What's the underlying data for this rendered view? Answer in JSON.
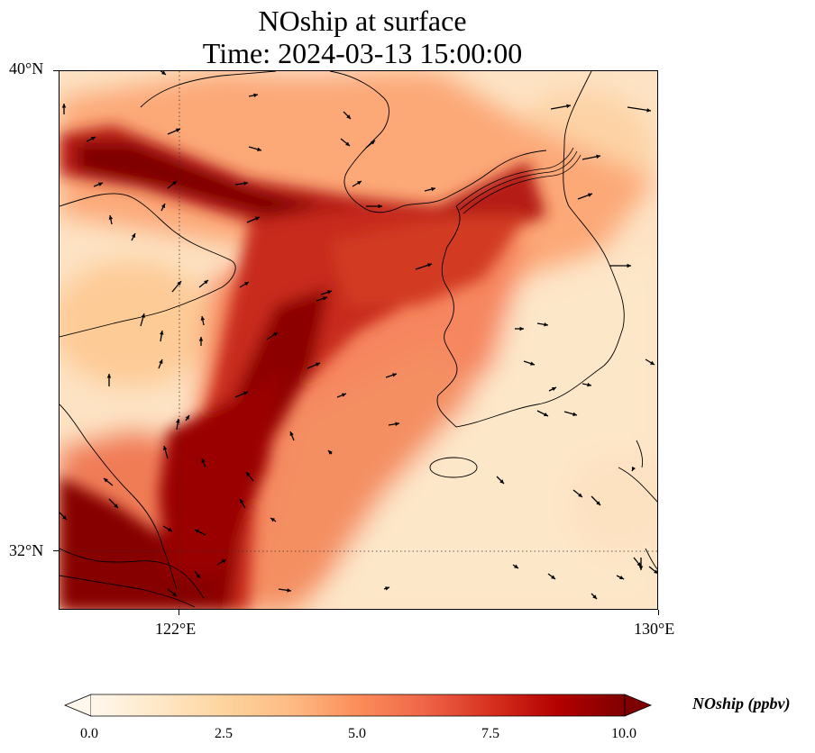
{
  "title": {
    "line1": "NOship at surface",
    "line2": "Time: 2024-03-13 15:00:00"
  },
  "axes": {
    "lat_ticks": [
      "40°N",
      "32°N"
    ],
    "lon_ticks": [
      "122°E",
      "130°E"
    ],
    "lat_range": [
      31,
      40
    ],
    "lon_range": [
      120,
      130
    ],
    "gridlines": "dotted"
  },
  "colorbar": {
    "label": "NOship (ppbv)",
    "ticks": [
      "0.0",
      "2.5",
      "5.0",
      "7.5",
      "10.0"
    ],
    "range": [
      0,
      10
    ],
    "extend": "both",
    "colormap": "OrRd",
    "colors": [
      "#fff7ec",
      "#fee8c8",
      "#fdd49e",
      "#fdbb84",
      "#fc8d59",
      "#ef6548",
      "#d7301f",
      "#b30000",
      "#7f0000"
    ]
  },
  "map": {
    "region": "Yellow Sea, Bohai Sea, Korean Peninsula, East China",
    "field": "NOship surface concentration with wind vectors",
    "high_values": "shipping lanes across Bohai Strait and Yellow Sea, near Shanghai/Jiangsu coast"
  }
}
